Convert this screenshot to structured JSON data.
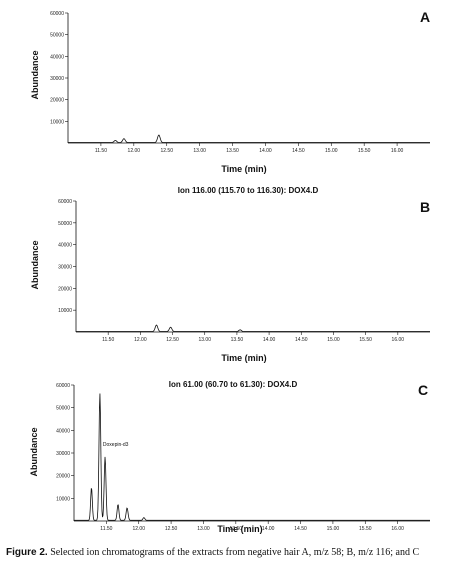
{
  "caption": {
    "label": "Figure 2.",
    "text": "Selected ion chromatograms of the extracts from negative hair A, m/z 58; B, m/z 116; and C"
  },
  "chart_data": [
    {
      "type": "line",
      "panel": "A",
      "title": "",
      "xlabel": "Time (min)",
      "ylabel": "Abundance",
      "xlim": [
        11.0,
        16.5
      ],
      "ylim": [
        0,
        60000
      ],
      "x_ticks": [
        "11.50",
        "12.00",
        "12.50",
        "13.00",
        "13.50",
        "14.00",
        "14.50",
        "15.00",
        "15.50",
        "16.00"
      ],
      "x_tick_values": [
        11.5,
        12.0,
        12.5,
        13.0,
        13.5,
        14.0,
        14.5,
        15.0,
        15.5,
        16.0
      ],
      "y_ticks": [
        "10000",
        "20000",
        "30000",
        "40000",
        "50000",
        "60000"
      ],
      "y_tick_values": [
        10000,
        20000,
        30000,
        40000,
        50000,
        60000
      ],
      "grid": false,
      "baseline": 200,
      "peaks": [
        {
          "x": 11.72,
          "y": 1000,
          "w": 0.02
        },
        {
          "x": 11.85,
          "y": 1800,
          "w": 0.02
        },
        {
          "x": 12.38,
          "y": 3500,
          "w": 0.02
        }
      ]
    },
    {
      "type": "line",
      "panel": "B",
      "title": "Ion 116.00 (115.70 to 116.30): DOX4.D",
      "xlabel": "Time (min)",
      "ylabel": "Abundance",
      "xlim": [
        11.0,
        16.5
      ],
      "ylim": [
        0,
        60000
      ],
      "x_ticks": [
        "11.50",
        "12.00",
        "12.50",
        "13.00",
        "13.50",
        "14.00",
        "14.50",
        "15.00",
        "15.50",
        "16.00"
      ],
      "x_tick_values": [
        11.5,
        12.0,
        12.5,
        13.0,
        13.5,
        14.0,
        14.5,
        15.0,
        15.5,
        16.0
      ],
      "y_ticks": [
        "10000",
        "20000",
        "30000",
        "40000",
        "50000",
        "60000"
      ],
      "y_tick_values": [
        10000,
        20000,
        30000,
        40000,
        50000,
        60000
      ],
      "grid": false,
      "baseline": 200,
      "peaks": [
        {
          "x": 12.25,
          "y": 3000,
          "w": 0.02
        },
        {
          "x": 12.47,
          "y": 2000,
          "w": 0.02
        },
        {
          "x": 13.55,
          "y": 800,
          "w": 0.02
        }
      ]
    },
    {
      "type": "line",
      "panel": "C",
      "title": "Ion 61.00 (60.70 to 61.30): DOX4.D",
      "xlabel": "Time (min)",
      "ylabel": "Abundance",
      "xlim": [
        11.0,
        16.5
      ],
      "ylim": [
        0,
        60000
      ],
      "x_ticks": [
        "11.50",
        "12.00",
        "12.50",
        "13.00",
        "13.50",
        "14.00",
        "14.50",
        "15.00",
        "15.50",
        "16.00"
      ],
      "x_tick_values": [
        11.5,
        12.0,
        12.5,
        13.0,
        13.5,
        14.0,
        14.5,
        15.0,
        15.5,
        16.0
      ],
      "y_ticks": [
        "10000",
        "20000",
        "30000",
        "40000",
        "50000",
        "60000"
      ],
      "y_tick_values": [
        10000,
        20000,
        30000,
        40000,
        50000,
        60000
      ],
      "grid": false,
      "baseline": 300,
      "peaks": [
        {
          "x": 11.27,
          "y": 14500,
          "w": 0.013
        },
        {
          "x": 11.4,
          "y": 56000,
          "w": 0.014
        },
        {
          "x": 11.48,
          "y": 28000,
          "w": 0.014
        },
        {
          "x": 11.68,
          "y": 7000,
          "w": 0.014
        },
        {
          "x": 11.82,
          "y": 5500,
          "w": 0.015
        },
        {
          "x": 12.08,
          "y": 1200,
          "w": 0.015
        }
      ],
      "annotations": [
        {
          "text": "Doxepin-d3",
          "x": 11.4,
          "y": 33000
        }
      ]
    }
  ]
}
